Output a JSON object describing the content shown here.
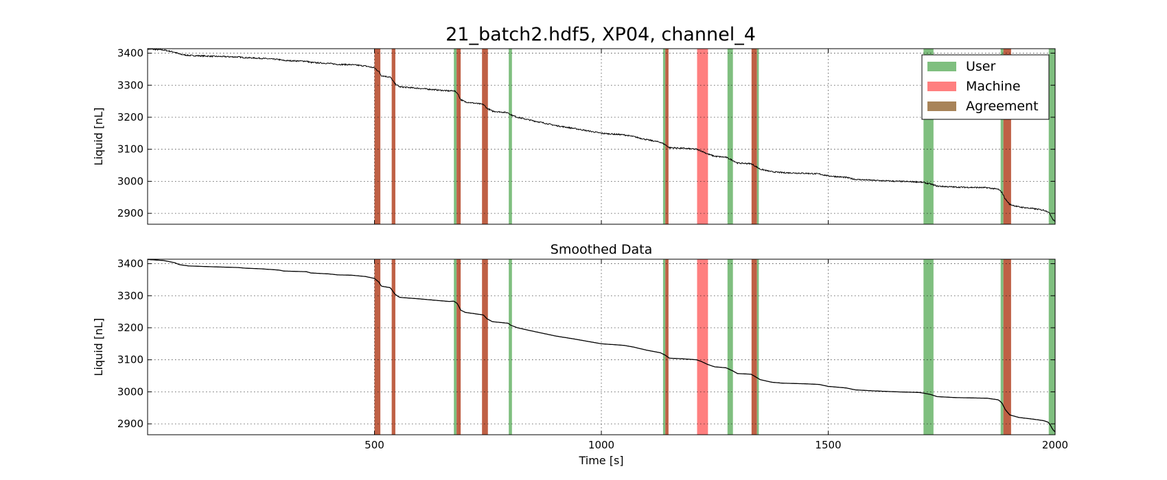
{
  "chart_data": {
    "type": "line",
    "title": "21_batch2.hdf5, XP04, channel_4",
    "xlabel": "Time [s]",
    "xlim": [
      0,
      2000
    ],
    "xticks": [
      500,
      1000,
      1500,
      2000
    ],
    "legend": {
      "placement": "top-right",
      "entries": [
        {
          "label": "User",
          "color": "#7fbf7f"
        },
        {
          "label": "Machine",
          "color": "#ff7f7f"
        },
        {
          "label": "Agreement",
          "color": "#a88358"
        }
      ]
    },
    "colors": {
      "user": "#7fbf7f",
      "machine": "#ff7f7f",
      "agreement": "#bf6045",
      "line": "#000000",
      "highlight_line": "#b22222"
    },
    "spans": [
      {
        "type": "agreement",
        "x0": 500,
        "x1": 513
      },
      {
        "type": "agreement",
        "x0": 538,
        "x1": 546
      },
      {
        "type": "user",
        "x0": 675,
        "x1": 681
      },
      {
        "type": "agreement",
        "x0": 681,
        "x1": 690
      },
      {
        "type": "agreement",
        "x0": 737,
        "x1": 750
      },
      {
        "type": "user",
        "x0": 796,
        "x1": 803
      },
      {
        "type": "user",
        "x0": 1136,
        "x1": 1141
      },
      {
        "type": "agreement",
        "x0": 1141,
        "x1": 1148
      },
      {
        "type": "machine",
        "x0": 1211,
        "x1": 1235
      },
      {
        "type": "user",
        "x0": 1278,
        "x1": 1290
      },
      {
        "type": "agreement",
        "x0": 1331,
        "x1": 1343
      },
      {
        "type": "user",
        "x0": 1343,
        "x1": 1347
      },
      {
        "type": "user",
        "x0": 1710,
        "x1": 1732
      },
      {
        "type": "user",
        "x0": 1880,
        "x1": 1886
      },
      {
        "type": "agreement",
        "x0": 1886,
        "x1": 1903
      },
      {
        "type": "user",
        "x0": 1986,
        "x1": 2000
      }
    ],
    "series_points": [
      [
        0,
        3413
      ],
      [
        35,
        3410
      ],
      [
        60,
        3403
      ],
      [
        70,
        3397
      ],
      [
        90,
        3393
      ],
      [
        150,
        3390
      ],
      [
        200,
        3388
      ],
      [
        215,
        3386
      ],
      [
        250,
        3384
      ],
      [
        290,
        3380
      ],
      [
        300,
        3377
      ],
      [
        350,
        3375
      ],
      [
        360,
        3371
      ],
      [
        400,
        3368
      ],
      [
        420,
        3365
      ],
      [
        450,
        3364
      ],
      [
        480,
        3360
      ],
      [
        500,
        3354
      ],
      [
        510,
        3342
      ],
      [
        515,
        3330
      ],
      [
        535,
        3325
      ],
      [
        545,
        3305
      ],
      [
        555,
        3295
      ],
      [
        600,
        3290
      ],
      [
        640,
        3285
      ],
      [
        665,
        3282
      ],
      [
        675,
        3283
      ],
      [
        683,
        3275
      ],
      [
        690,
        3255
      ],
      [
        700,
        3248
      ],
      [
        740,
        3240
      ],
      [
        748,
        3228
      ],
      [
        760,
        3219
      ],
      [
        795,
        3214
      ],
      [
        800,
        3208
      ],
      [
        815,
        3200
      ],
      [
        840,
        3192
      ],
      [
        870,
        3183
      ],
      [
        900,
        3174
      ],
      [
        940,
        3165
      ],
      [
        980,
        3155
      ],
      [
        1000,
        3150
      ],
      [
        1050,
        3145
      ],
      [
        1070,
        3140
      ],
      [
        1100,
        3130
      ],
      [
        1130,
        3122
      ],
      [
        1140,
        3115
      ],
      [
        1150,
        3105
      ],
      [
        1180,
        3103
      ],
      [
        1210,
        3100
      ],
      [
        1220,
        3095
      ],
      [
        1235,
        3085
      ],
      [
        1250,
        3078
      ],
      [
        1275,
        3075
      ],
      [
        1290,
        3065
      ],
      [
        1300,
        3057
      ],
      [
        1330,
        3055
      ],
      [
        1342,
        3045
      ],
      [
        1350,
        3038
      ],
      [
        1375,
        3030
      ],
      [
        1400,
        3027
      ],
      [
        1450,
        3025
      ],
      [
        1480,
        3023
      ],
      [
        1500,
        3017
      ],
      [
        1540,
        3012
      ],
      [
        1560,
        3006
      ],
      [
        1600,
        3003
      ],
      [
        1650,
        3000
      ],
      [
        1700,
        2998
      ],
      [
        1710,
        2996
      ],
      [
        1725,
        2992
      ],
      [
        1740,
        2985
      ],
      [
        1780,
        2982
      ],
      [
        1850,
        2980
      ],
      [
        1875,
        2975
      ],
      [
        1883,
        2965
      ],
      [
        1890,
        2945
      ],
      [
        1900,
        2928
      ],
      [
        1920,
        2920
      ],
      [
        1950,
        2915
      ],
      [
        1975,
        2910
      ],
      [
        1985,
        2905
      ],
      [
        1990,
        2895
      ],
      [
        1995,
        2882
      ],
      [
        2000,
        2875
      ]
    ],
    "axes": [
      {
        "name": "raw",
        "title": "",
        "ylabel": "Liquid [nL]",
        "ylim": [
          2866,
          3414
        ],
        "yticks": [
          2900,
          3000,
          3100,
          3200,
          3300,
          3400
        ],
        "noisy": true,
        "show_xtick_labels": false,
        "show_xlabel": false
      },
      {
        "name": "smoothed",
        "title": "Smoothed Data",
        "ylabel": "Liquid [nL]",
        "ylim": [
          2866,
          3414
        ],
        "yticks": [
          2900,
          3000,
          3100,
          3200,
          3300,
          3400
        ],
        "noisy": false,
        "show_xtick_labels": true,
        "show_xlabel": true
      }
    ]
  }
}
